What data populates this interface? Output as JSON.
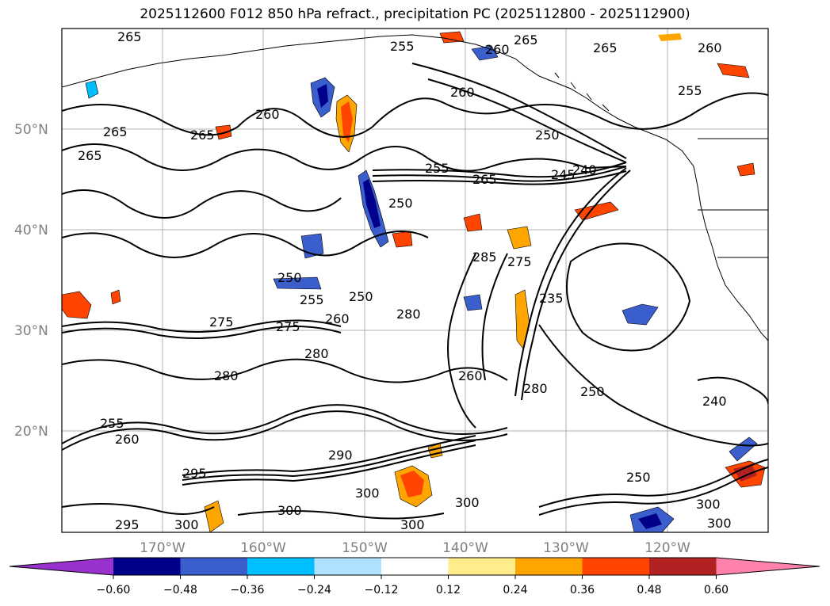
{
  "title": "2025112600 F012 850 hPa refract., precipitation PC (2025112800 - 2025112900)",
  "lat_labels": [
    "50°N",
    "40°N",
    "30°N",
    "20°N"
  ],
  "lon_labels": [
    "170°W",
    "160°W",
    "150°W",
    "140°W",
    "130°W",
    "120°W"
  ],
  "colorbar": {
    "tick_labels": [
      "−0.60",
      "−0.48",
      "−0.36",
      "−0.24",
      "−0.12",
      "0.12",
      "0.24",
      "0.36",
      "0.48",
      "0.60"
    ],
    "colors": [
      "#9932cc",
      "#00008b",
      "#3a5fcd",
      "#00bfff",
      "#b0e2ff",
      "#ffffff",
      "#ffec8b",
      "#ffa500",
      "#ff4500",
      "#b22222",
      "#ff82ab"
    ],
    "extend": "both"
  },
  "contour_labels": [
    "265",
    "265",
    "265",
    "260",
    "265",
    "260",
    "255",
    "250",
    "265",
    "265",
    "260",
    "255",
    "250",
    "255",
    "245",
    "240",
    "265",
    "260",
    "250",
    "275",
    "285",
    "250",
    "255",
    "260",
    "275",
    "275",
    "280",
    "280",
    "280",
    "235",
    "280",
    "250",
    "260",
    "240",
    "255",
    "290",
    "260",
    "295",
    "300",
    "300",
    "300",
    "300",
    "295",
    "300",
    "250",
    "300",
    "300"
  ],
  "colors": {
    "contour": "#000000",
    "grid": "#b0b0b0",
    "frame": "#000000",
    "axis_text": "#808080"
  }
}
